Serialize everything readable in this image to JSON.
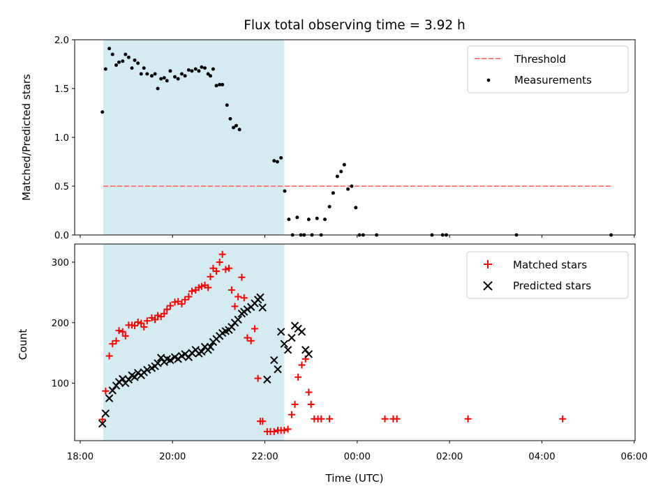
{
  "chart_data": [
    {
      "type": "scatter",
      "title": "Flux total observing time = 3.92 h",
      "xlabel": "",
      "ylabel": "Matched/Predicted stars",
      "xlim": [
        17.88,
        30.02
      ],
      "ylim": [
        0,
        2.0
      ],
      "yticks": [
        0.0,
        0.5,
        1.0,
        1.5,
        2.0
      ],
      "ytick_labels": [
        "0.0",
        "0.5",
        "1.0",
        "1.5",
        "2.0"
      ],
      "shaded_interval": [
        18.5,
        22.42
      ],
      "shaded_color": "#add8e6",
      "legend_position": "top-right",
      "threshold": {
        "name": "Threshold",
        "y": 0.5,
        "x": [
          18.5,
          29.5
        ],
        "color": "#ff7f7f",
        "style": "dashed"
      },
      "series": [
        {
          "name": "Measurements",
          "marker": "dot",
          "color": "#000000",
          "points": [
            [
              18.48,
              1.26
            ],
            [
              18.55,
              1.7
            ],
            [
              18.63,
              1.91
            ],
            [
              18.7,
              1.85
            ],
            [
              18.78,
              1.74
            ],
            [
              18.84,
              1.77
            ],
            [
              18.92,
              1.78
            ],
            [
              18.98,
              1.85
            ],
            [
              19.05,
              1.82
            ],
            [
              19.12,
              1.71
            ],
            [
              19.18,
              1.79
            ],
            [
              19.25,
              1.76
            ],
            [
              19.32,
              1.65
            ],
            [
              19.38,
              1.71
            ],
            [
              19.45,
              1.65
            ],
            [
              19.55,
              1.63
            ],
            [
              19.62,
              1.65
            ],
            [
              19.68,
              1.5
            ],
            [
              19.75,
              1.6
            ],
            [
              19.82,
              1.61
            ],
            [
              19.88,
              1.58
            ],
            [
              19.95,
              1.68
            ],
            [
              20.05,
              1.62
            ],
            [
              20.12,
              1.6
            ],
            [
              20.2,
              1.65
            ],
            [
              20.27,
              1.63
            ],
            [
              20.35,
              1.69
            ],
            [
              20.42,
              1.68
            ],
            [
              20.5,
              1.7
            ],
            [
              20.57,
              1.68
            ],
            [
              20.63,
              1.72
            ],
            [
              20.7,
              1.71
            ],
            [
              20.77,
              1.65
            ],
            [
              20.82,
              1.63
            ],
            [
              20.88,
              1.7
            ],
            [
              20.95,
              1.53
            ],
            [
              21.02,
              1.54
            ],
            [
              21.08,
              1.54
            ],
            [
              21.18,
              1.33
            ],
            [
              21.25,
              1.19
            ],
            [
              21.32,
              1.1
            ],
            [
              21.38,
              1.12
            ],
            [
              21.45,
              1.08
            ],
            [
              22.2,
              0.76
            ],
            [
              22.27,
              0.75
            ],
            [
              22.35,
              0.79
            ],
            [
              22.43,
              0.45
            ],
            [
              22.52,
              0.16
            ],
            [
              22.6,
              0.0
            ],
            [
              22.7,
              0.18
            ],
            [
              22.78,
              0.0
            ],
            [
              22.85,
              0.0
            ],
            [
              22.95,
              0.16
            ],
            [
              23.02,
              0.0
            ],
            [
              23.13,
              0.17
            ],
            [
              23.22,
              0.0
            ],
            [
              23.3,
              0.16
            ],
            [
              23.4,
              0.29
            ],
            [
              23.48,
              0.43
            ],
            [
              23.57,
              0.6
            ],
            [
              23.65,
              0.65
            ],
            [
              23.72,
              0.72
            ],
            [
              23.8,
              0.47
            ],
            [
              23.88,
              0.5
            ],
            [
              23.97,
              0.28
            ],
            [
              24.05,
              0.0
            ],
            [
              24.13,
              0.0
            ],
            [
              24.42,
              0.0
            ],
            [
              25.62,
              0.0
            ],
            [
              25.85,
              0.0
            ],
            [
              25.93,
              0.0
            ],
            [
              27.45,
              0.0
            ],
            [
              29.5,
              0.0
            ]
          ]
        }
      ]
    },
    {
      "type": "scatter",
      "title": "",
      "xlabel": "Time (UTC)",
      "ylabel": "Count",
      "xlim": [
        17.88,
        30.02
      ],
      "ylim": [
        5,
        330
      ],
      "yticks": [
        100,
        200,
        300
      ],
      "ytick_labels": [
        "100",
        "200",
        "300"
      ],
      "xticks": [
        18,
        20,
        22,
        24,
        26,
        28,
        30
      ],
      "xtick_labels": [
        "18:00",
        "20:00",
        "22:00",
        "00:00",
        "02:00",
        "04:00",
        "06:00"
      ],
      "shaded_interval": [
        18.5,
        22.42
      ],
      "shaded_color": "#add8e6",
      "legend_position": "top-right",
      "series": [
        {
          "name": "Matched stars",
          "marker": "plus",
          "color": "#ff0000",
          "points": [
            [
              18.48,
              40
            ],
            [
              18.55,
              87
            ],
            [
              18.63,
              145
            ],
            [
              18.7,
              165
            ],
            [
              18.78,
              170
            ],
            [
              18.84,
              187
            ],
            [
              18.92,
              185
            ],
            [
              18.98,
              178
            ],
            [
              19.05,
              196
            ],
            [
              19.12,
              196
            ],
            [
              19.18,
              195
            ],
            [
              19.25,
              201
            ],
            [
              19.32,
              199
            ],
            [
              19.38,
              193
            ],
            [
              19.45,
              203
            ],
            [
              19.55,
              208
            ],
            [
              19.62,
              205
            ],
            [
              19.68,
              212
            ],
            [
              19.75,
              210
            ],
            [
              19.82,
              215
            ],
            [
              19.88,
              222
            ],
            [
              19.95,
              228
            ],
            [
              20.05,
              234
            ],
            [
              20.12,
              235
            ],
            [
              20.2,
              231
            ],
            [
              20.27,
              238
            ],
            [
              20.35,
              243
            ],
            [
              20.42,
              252
            ],
            [
              20.5,
              254
            ],
            [
              20.57,
              258
            ],
            [
              20.63,
              260
            ],
            [
              20.7,
              262
            ],
            [
              20.77,
              258
            ],
            [
              20.82,
              276
            ],
            [
              20.88,
              290
            ],
            [
              20.95,
              285
            ],
            [
              21.02,
              300
            ],
            [
              21.08,
              313
            ],
            [
              21.15,
              288
            ],
            [
              21.22,
              290
            ],
            [
              21.28,
              254
            ],
            [
              21.35,
              227
            ],
            [
              21.42,
              243
            ],
            [
              21.5,
              275
            ],
            [
              21.55,
              241
            ],
            [
              21.62,
              175
            ],
            [
              21.7,
              170
            ],
            [
              21.78,
              190
            ],
            [
              21.85,
              108
            ],
            [
              21.9,
              37
            ],
            [
              21.95,
              37
            ],
            [
              22.05,
              20
            ],
            [
              22.12,
              20
            ],
            [
              22.2,
              20
            ],
            [
              22.28,
              22
            ],
            [
              22.35,
              22
            ],
            [
              22.42,
              22
            ],
            [
              22.5,
              24
            ],
            [
              22.58,
              48
            ],
            [
              22.65,
              65
            ],
            [
              22.72,
              110
            ],
            [
              22.8,
              130
            ],
            [
              22.88,
              140
            ],
            [
              22.95,
              85
            ],
            [
              23.0,
              65
            ],
            [
              23.07,
              41
            ],
            [
              23.15,
              41
            ],
            [
              23.22,
              41
            ],
            [
              23.4,
              41
            ],
            [
              24.6,
              41
            ],
            [
              24.78,
              41
            ],
            [
              24.86,
              41
            ],
            [
              26.4,
              41
            ],
            [
              28.45,
              41
            ]
          ]
        },
        {
          "name": "Predicted stars",
          "marker": "x",
          "color": "#000000",
          "points": [
            [
              18.48,
              33
            ],
            [
              18.55,
              50
            ],
            [
              18.63,
              75
            ],
            [
              18.7,
              88
            ],
            [
              18.78,
              96
            ],
            [
              18.84,
              102
            ],
            [
              18.92,
              107
            ],
            [
              18.98,
              100
            ],
            [
              19.05,
              106
            ],
            [
              19.12,
              113
            ],
            [
              19.18,
              110
            ],
            [
              19.25,
              117
            ],
            [
              19.32,
              113
            ],
            [
              19.38,
              118
            ],
            [
              19.45,
              122
            ],
            [
              19.55,
              125
            ],
            [
              19.62,
              128
            ],
            [
              19.68,
              133
            ],
            [
              19.75,
              142
            ],
            [
              19.82,
              135
            ],
            [
              19.88,
              140
            ],
            [
              19.95,
              138
            ],
            [
              20.05,
              143
            ],
            [
              20.12,
              140
            ],
            [
              20.2,
              145
            ],
            [
              20.27,
              148
            ],
            [
              20.35,
              143
            ],
            [
              20.42,
              150
            ],
            [
              20.5,
              155
            ],
            [
              20.57,
              149
            ],
            [
              20.63,
              152
            ],
            [
              20.7,
              160
            ],
            [
              20.77,
              155
            ],
            [
              20.82,
              160
            ],
            [
              20.88,
              168
            ],
            [
              20.95,
              173
            ],
            [
              21.02,
              178
            ],
            [
              21.08,
              183
            ],
            [
              21.15,
              186
            ],
            [
              21.22,
              188
            ],
            [
              21.28,
              193
            ],
            [
              21.35,
              200
            ],
            [
              21.42,
              205
            ],
            [
              21.5,
              215
            ],
            [
              21.55,
              218
            ],
            [
              21.62,
              222
            ],
            [
              21.7,
              226
            ],
            [
              21.78,
              232
            ],
            [
              21.85,
              238
            ],
            [
              21.9,
              242
            ],
            [
              21.95,
              225
            ],
            [
              22.05,
              106
            ],
            [
              22.2,
              138
            ],
            [
              22.28,
              123
            ],
            [
              22.35,
              185
            ],
            [
              22.42,
              165
            ],
            [
              22.5,
              155
            ],
            [
              22.58,
              175
            ],
            [
              22.65,
              195
            ],
            [
              22.72,
              190
            ],
            [
              22.8,
              185
            ],
            [
              22.88,
              155
            ],
            [
              22.95,
              148
            ]
          ]
        }
      ]
    }
  ]
}
